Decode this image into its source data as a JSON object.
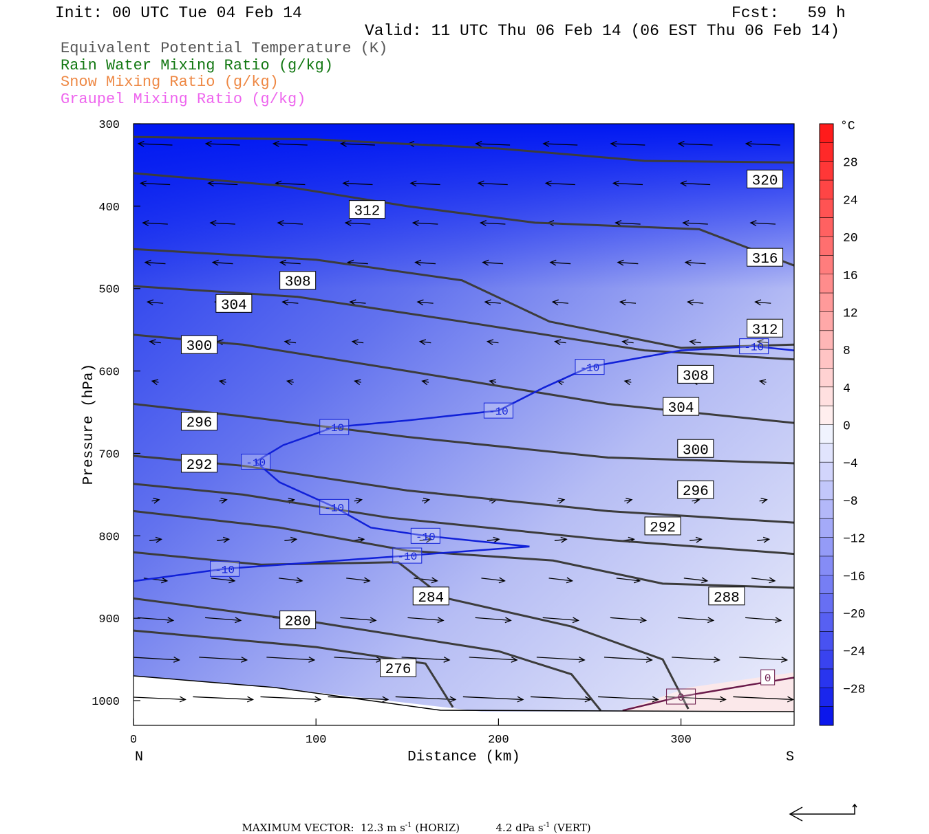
{
  "header": {
    "init": "Init: 00 UTC Tue 04 Feb 14",
    "fcst": "Fcst:   59 h",
    "valid": "Valid: 11 UTC Thu 06 Feb 14 (06 EST Thu 06 Feb 14)"
  },
  "legend": [
    {
      "text": "Equivalent Potential Temperature (K)",
      "color": "#555555"
    },
    {
      "text": "Rain Water Mixing Ratio (g/kg)",
      "color": "#117711"
    },
    {
      "text": "Snow Mixing Ratio (g/kg)",
      "color": "#ee8844"
    },
    {
      "text": "Graupel Mixing Ratio (g/kg)",
      "color": "#ee66ee"
    }
  ],
  "footer": {
    "max_vector_label": "MAXIMUM VECTOR:",
    "horiz": "12.3 m s",
    "horiz_unit": "(HORIZ)",
    "vert": "4.2 dPa s",
    "vert_unit": "(VERT)",
    "exp": "-1"
  },
  "chart_data": {
    "type": "contour",
    "xlabel": "Distance (km)",
    "ylabel": "Pressure (hPa)",
    "xlim": [
      0,
      362
    ],
    "ylim": [
      1030,
      300
    ],
    "x_ticks": [
      0,
      100,
      200,
      300
    ],
    "y_ticks": [
      300,
      400,
      500,
      600,
      700,
      800,
      900,
      1000
    ],
    "x_end_labels": {
      "left": "N",
      "right": "S"
    },
    "colorbar": {
      "unit": "°C",
      "ticks": [
        28,
        24,
        20,
        16,
        12,
        8,
        4,
        0,
        -4,
        -8,
        -12,
        -16,
        -20,
        -24,
        -28
      ],
      "range": [
        -32,
        32
      ]
    },
    "theta_e_contours": [
      {
        "label": "320",
        "points": [
          [
            0,
            316
          ],
          [
            100,
            319
          ],
          [
            200,
            330
          ],
          [
            280,
            345
          ],
          [
            362,
            347
          ]
        ],
        "labels_at": [
          [
            346,
            367
          ]
        ]
      },
      {
        "label": "316",
        "points": [
          [
            0,
            360
          ],
          [
            80,
            375
          ],
          [
            150,
            400
          ],
          [
            220,
            420
          ],
          [
            310,
            428
          ],
          [
            362,
            472
          ]
        ],
        "labels_at": [
          [
            346,
            462
          ]
        ]
      },
      {
        "label": "312",
        "points": [
          [
            0,
            452
          ],
          [
            100,
            465
          ],
          [
            180,
            490
          ],
          [
            228,
            540
          ],
          [
            300,
            572
          ],
          [
            362,
            568
          ]
        ],
        "labels_at": [
          [
            128,
            404
          ],
          [
            346,
            548
          ]
        ]
      },
      {
        "label": "308",
        "points": [
          [
            0,
            497
          ],
          [
            90,
            510
          ],
          [
            180,
            540
          ],
          [
            280,
            575
          ],
          [
            362,
            586
          ]
        ],
        "labels_at": [
          [
            90,
            490
          ],
          [
            308,
            604
          ]
        ]
      },
      {
        "label": "304",
        "points": [
          [
            0,
            556
          ],
          [
            60,
            568
          ],
          [
            150,
            600
          ],
          [
            260,
            640
          ],
          [
            362,
            663
          ]
        ],
        "labels_at": [
          [
            55,
            518
          ],
          [
            300,
            643
          ]
        ]
      },
      {
        "label": "300",
        "points": [
          [
            0,
            640
          ],
          [
            60,
            655
          ],
          [
            150,
            680
          ],
          [
            260,
            705
          ],
          [
            362,
            712
          ]
        ],
        "labels_at": [
          [
            36,
            568
          ],
          [
            308,
            694
          ]
        ]
      },
      {
        "label": "296",
        "points": [
          [
            0,
            703
          ],
          [
            60,
            715
          ],
          [
            150,
            745
          ],
          [
            260,
            770
          ],
          [
            362,
            784
          ]
        ],
        "labels_at": [
          [
            36,
            661
          ],
          [
            308,
            744
          ]
        ]
      },
      {
        "label": "292",
        "points": [
          [
            0,
            737
          ],
          [
            60,
            750
          ],
          [
            140,
            778
          ],
          [
            260,
            805
          ],
          [
            362,
            822
          ]
        ],
        "labels_at": [
          [
            36,
            712
          ],
          [
            290,
            788
          ]
        ]
      },
      {
        "label": "288",
        "points": [
          [
            0,
            770
          ],
          [
            80,
            790
          ],
          [
            150,
            818
          ],
          [
            230,
            830
          ],
          [
            290,
            858
          ],
          [
            362,
            863
          ]
        ],
        "labels_at": [
          [
            325,
            873
          ]
        ]
      },
      {
        "label": "284",
        "points": [
          [
            0,
            820
          ],
          [
            70,
            835
          ],
          [
            145,
            832
          ],
          [
            170,
            875
          ],
          [
            240,
            910
          ],
          [
            290,
            950
          ],
          [
            304,
            1010
          ]
        ],
        "labels_at": [
          [
            163,
            873
          ]
        ]
      },
      {
        "label": "280",
        "points": [
          [
            0,
            876
          ],
          [
            100,
            905
          ],
          [
            200,
            940
          ],
          [
            240,
            968
          ],
          [
            256,
            1012
          ]
        ],
        "labels_at": [
          [
            90,
            902
          ]
        ]
      },
      {
        "label": "276",
        "points": [
          [
            0,
            915
          ],
          [
            100,
            935
          ],
          [
            160,
            955
          ],
          [
            175,
            1008
          ]
        ],
        "labels_at": [
          [
            145,
            960
          ]
        ]
      }
    ],
    "temperature_contours": [
      {
        "label": "-10",
        "points": [
          [
            0,
            855
          ],
          [
            50,
            840
          ],
          [
            100,
            832
          ],
          [
            150,
            824
          ],
          [
            217,
            813
          ]
        ]
      },
      {
        "label": "-10",
        "points": [
          [
            217,
            813
          ],
          [
            160,
            800
          ],
          [
            130,
            790
          ],
          [
            110,
            765
          ],
          [
            80,
            735
          ],
          [
            67,
            710
          ],
          [
            82,
            690
          ],
          [
            110,
            668
          ],
          [
            150,
            660
          ],
          [
            200,
            648
          ],
          [
            225,
            620
          ],
          [
            250,
            595
          ],
          [
            300,
            575
          ],
          [
            340,
            570
          ],
          [
            362,
            575
          ]
        ]
      },
      {
        "label": "0",
        "points": [
          [
            268,
            1012
          ],
          [
            300,
            995
          ],
          [
            340,
            980
          ],
          [
            362,
            972
          ]
        ]
      }
    ],
    "vector_field_note": "wind vectors shown as arrows"
  }
}
